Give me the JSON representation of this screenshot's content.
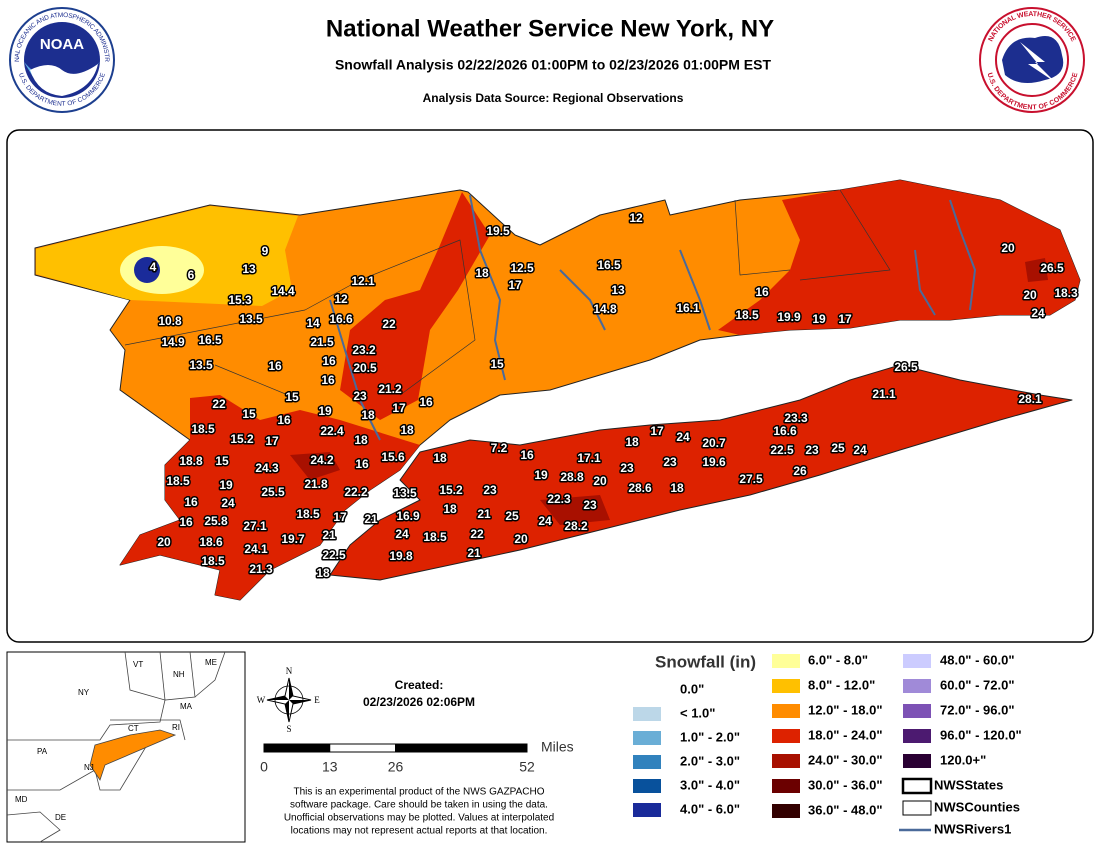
{
  "header": {
    "title": "National Weather Service New York, NY",
    "subtitle": "Snowfall Analysis 02/22/2026 01:00PM to 02/23/2026 01:00PM EST",
    "source": "Analysis Data Source: Regional Observations",
    "noaa_logo": "NOAA",
    "noaa_ring_top": "NATIONAL OCEANIC AND ATMOSPHERIC ADMINISTRATION",
    "noaa_ring_bottom": "U.S. DEPARTMENT OF COMMERCE",
    "nws_ring_top": "NATIONAL WEATHER SERVICE",
    "nws_ring_bottom": "U.S. DEPARTMENT OF COMMERCE"
  },
  "map": {
    "observations": [
      4,
      6,
      9,
      13,
      15.3,
      14.4,
      10.8,
      13.5,
      16.5,
      14.9,
      13.5,
      16,
      12.1,
      12,
      16.6,
      14,
      22,
      21.5,
      16,
      23.2,
      20.5,
      16,
      15,
      23,
      21.2,
      22,
      15,
      16,
      19,
      18,
      17,
      16,
      18.5,
      15.2,
      17,
      22.4,
      18,
      18,
      18.8,
      15,
      24.3,
      24.2,
      16,
      15.6,
      18.5,
      19,
      16,
      24,
      25.5,
      21.8,
      22.2,
      13.5,
      18,
      7.2,
      16,
      15.2,
      23,
      18,
      19,
      28.8,
      17.1,
      20,
      22.3,
      16,
      25.8,
      27.1,
      18.5,
      17,
      21,
      16.9,
      21,
      25,
      20,
      18.6,
      19.7,
      21,
      24,
      18.5,
      22,
      24,
      23,
      28.2,
      20,
      18.5,
      24.1,
      22.5,
      19.8,
      21,
      21.3,
      18,
      19.5,
      18,
      12.5,
      17,
      12,
      16.5,
      13,
      14.8,
      16.1,
      18.5,
      16,
      19.9,
      19,
      17,
      15,
      18,
      17,
      24,
      20.7,
      23,
      23,
      19.6,
      28.6,
      18,
      16.6,
      22.5,
      23,
      25,
      24,
      26,
      27.5,
      23.3,
      26.5,
      21.1,
      28.1,
      20,
      26.5,
      20,
      18.3,
      24
    ]
  },
  "inset": {
    "labels": [
      "VT",
      "NH",
      "ME",
      "NY",
      "MA",
      "CT",
      "RI",
      "PA",
      "NJ",
      "MD",
      "DE"
    ]
  },
  "compass": {
    "n": "N",
    "s": "S",
    "e": "E",
    "w": "W"
  },
  "created": {
    "label": "Created:",
    "date": "02/23/2026 02:06PM"
  },
  "scale": {
    "units": "Miles",
    "ticks": [
      0,
      13,
      26,
      52
    ]
  },
  "disclaimer": [
    "This is an experimental product of the NWS GAZPACHO",
    "software package. Care should be taken in using the data.",
    "Unofficial observations may be plotted. Values at interpolated",
    "locations may not represent actual reports at that location."
  ],
  "legend": {
    "title": "Snowfall (in)",
    "snowfall": [
      {
        "label": "0.0\"",
        "color": "#ffffff"
      },
      {
        "label": "< 1.0\"",
        "color": "#bcd7e8"
      },
      {
        "label": "1.0\" - 2.0\"",
        "color": "#6aaed6"
      },
      {
        "label": "2.0\" - 3.0\"",
        "color": "#3182bd"
      },
      {
        "label": "3.0\" - 4.0\"",
        "color": "#08519c"
      },
      {
        "label": "4.0\" - 6.0\"",
        "color": "#1a2b9a"
      },
      {
        "label": "6.0\" - 8.0\"",
        "color": "#ffff99"
      },
      {
        "label": "8.0\" - 12.0\"",
        "color": "#ffc000"
      },
      {
        "label": "12.0\" - 18.0\"",
        "color": "#ff8c00"
      },
      {
        "label": "18.0\" - 24.0\"",
        "color": "#dd2200"
      },
      {
        "label": "24.0\" - 30.0\"",
        "color": "#a81000"
      },
      {
        "label": "30.0\" - 36.0\"",
        "color": "#6b0000"
      },
      {
        "label": "36.0\" - 48.0\"",
        "color": "#330000"
      },
      {
        "label": "48.0\" - 60.0\"",
        "color": "#ccccff"
      },
      {
        "label": "60.0\" - 72.0\"",
        "color": "#a08ad8"
      },
      {
        "label": "72.0\" - 96.0\"",
        "color": "#7d52b5"
      },
      {
        "label": "96.0\" - 120.0\"",
        "color": "#4c1a70"
      },
      {
        "label": "120.0+\"",
        "color": "#2a0033"
      }
    ],
    "layers": [
      "NWSStates",
      "NWSCounties",
      "NWSRivers1"
    ]
  }
}
